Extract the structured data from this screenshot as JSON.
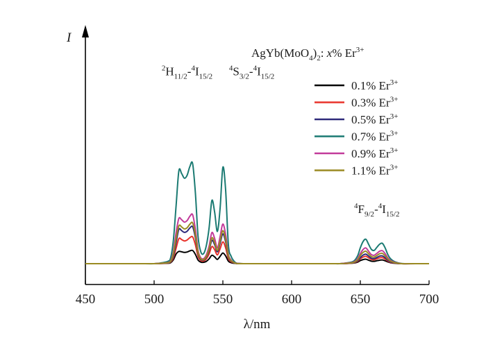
{
  "chart_data": {
    "type": "line",
    "title": "",
    "xlabel": "λ/nm",
    "ylabel": "I",
    "xlim": [
      450,
      700
    ],
    "xticks": [
      450,
      500,
      550,
      600,
      650,
      700
    ],
    "ylim": [
      0,
      1.15
    ],
    "yticks": [],
    "grid": false,
    "legend": {
      "title_main": "AgYb(MoO",
      "title_sub4": "4",
      "title_paren": ")",
      "title_sub2": "2",
      "title_colon": ": ",
      "title_var": "x",
      "title_rest": "% Er",
      "title_sup": "3+",
      "placement": "top-right"
    },
    "annotations": [
      {
        "x": 524,
        "y": 0.97,
        "parts": [
          {
            "t": "2",
            "k": "sup"
          },
          {
            "t": "H",
            "k": "n"
          },
          {
            "t": "11/2",
            "k": "sub"
          },
          {
            "t": "-",
            "k": "n"
          },
          {
            "t": "4",
            "k": "sup"
          },
          {
            "t": "I",
            "k": "n"
          },
          {
            "t": "15/2",
            "k": "sub"
          }
        ]
      },
      {
        "x": 571,
        "y": 0.97,
        "parts": [
          {
            "t": "4",
            "k": "sup"
          },
          {
            "t": "S",
            "k": "n"
          },
          {
            "t": "3/2",
            "k": "sub"
          },
          {
            "t": "-",
            "k": "n"
          },
          {
            "t": "4",
            "k": "sup"
          },
          {
            "t": "I",
            "k": "n"
          },
          {
            "t": "15/2",
            "k": "sub"
          }
        ]
      },
      {
        "x": 662,
        "y": 0.26,
        "parts": [
          {
            "t": "4",
            "k": "sup"
          },
          {
            "t": "F",
            "k": "n"
          },
          {
            "t": "9/2",
            "k": "sub"
          },
          {
            "t": "-",
            "k": "n"
          },
          {
            "t": "4",
            "k": "sup"
          },
          {
            "t": "I",
            "k": "n"
          },
          {
            "t": "15/2",
            "k": "sub"
          }
        ]
      }
    ],
    "x": [
      450,
      460,
      470,
      480,
      490,
      500,
      505,
      510,
      512,
      514,
      516,
      518,
      520,
      522,
      524,
      526,
      528,
      530,
      532,
      534,
      536,
      538,
      540,
      542,
      544,
      546,
      548,
      550,
      552,
      554,
      556,
      558,
      560,
      565,
      570,
      580,
      590,
      600,
      610,
      620,
      630,
      635,
      640,
      645,
      648,
      650,
      652,
      654,
      656,
      658,
      660,
      662,
      664,
      666,
      668,
      670,
      672,
      675,
      680,
      690,
      700
    ],
    "series": [
      {
        "name": "0.1% Er",
        "sup": "3+",
        "color": "#000000",
        "values": [
          0,
          0,
          0,
          0,
          0,
          0,
          0.001,
          0.002,
          0.005,
          0.02,
          0.05,
          0.063,
          0.061,
          0.058,
          0.06,
          0.066,
          0.068,
          0.048,
          0.018,
          0.008,
          0.007,
          0.012,
          0.025,
          0.043,
          0.035,
          0.022,
          0.038,
          0.055,
          0.04,
          0.013,
          0.005,
          0.002,
          0.001,
          0,
          0,
          0,
          0,
          0,
          0,
          0,
          0,
          0,
          0.001,
          0.003,
          0.008,
          0.016,
          0.021,
          0.023,
          0.018,
          0.013,
          0.012,
          0.015,
          0.018,
          0.019,
          0.015,
          0.009,
          0.005,
          0.002,
          0,
          0,
          0
        ]
      },
      {
        "name": "0.3% Er",
        "sup": "3+",
        "color": "#e8322a",
        "values": [
          0,
          0,
          0,
          0,
          0,
          0,
          0.001,
          0.003,
          0.008,
          0.03,
          0.08,
          0.129,
          0.124,
          0.117,
          0.122,
          0.134,
          0.138,
          0.098,
          0.037,
          0.016,
          0.014,
          0.025,
          0.05,
          0.088,
          0.072,
          0.045,
          0.077,
          0.112,
          0.082,
          0.026,
          0.01,
          0.004,
          0.001,
          0,
          0,
          0,
          0,
          0,
          0,
          0,
          0,
          0,
          0.001,
          0.004,
          0.012,
          0.025,
          0.034,
          0.038,
          0.03,
          0.022,
          0.02,
          0.025,
          0.03,
          0.031,
          0.024,
          0.014,
          0.007,
          0.003,
          0,
          0,
          0
        ]
      },
      {
        "name": "0.5% Er",
        "sup": "3+",
        "color": "#2e2a7a",
        "values": [
          0,
          0,
          0,
          0,
          0,
          0,
          0.002,
          0.004,
          0.01,
          0.04,
          0.11,
          0.177,
          0.17,
          0.161,
          0.167,
          0.184,
          0.19,
          0.134,
          0.051,
          0.022,
          0.019,
          0.034,
          0.068,
          0.12,
          0.098,
          0.061,
          0.105,
          0.153,
          0.112,
          0.036,
          0.014,
          0.005,
          0.001,
          0,
          0,
          0,
          0,
          0,
          0,
          0,
          0,
          0,
          0.002,
          0.005,
          0.015,
          0.031,
          0.044,
          0.049,
          0.039,
          0.028,
          0.026,
          0.032,
          0.039,
          0.04,
          0.031,
          0.018,
          0.009,
          0.004,
          0,
          0,
          0
        ]
      },
      {
        "name": "0.7% Er",
        "sup": "3+",
        "color": "#1a7a72",
        "values": [
          0,
          0,
          0,
          0,
          0,
          0,
          0.004,
          0.012,
          0.03,
          0.12,
          0.3,
          0.478,
          0.464,
          0.44,
          0.455,
          0.5,
          0.515,
          0.365,
          0.137,
          0.06,
          0.052,
          0.094,
          0.185,
          0.325,
          0.266,
          0.166,
          0.286,
          0.496,
          0.38,
          0.098,
          0.038,
          0.014,
          0.003,
          0,
          0,
          0,
          0,
          0,
          0,
          0,
          0,
          0,
          0.004,
          0.012,
          0.04,
          0.082,
          0.114,
          0.126,
          0.1,
          0.074,
          0.068,
          0.084,
          0.1,
          0.105,
          0.082,
          0.047,
          0.025,
          0.01,
          0.001,
          0,
          0
        ]
      },
      {
        "name": "0.9% Er",
        "sup": "3+",
        "color": "#c23a9a",
        "values": [
          0,
          0,
          0,
          0,
          0,
          0,
          0.002,
          0.006,
          0.015,
          0.06,
          0.16,
          0.233,
          0.226,
          0.214,
          0.222,
          0.244,
          0.252,
          0.178,
          0.067,
          0.029,
          0.026,
          0.046,
          0.091,
          0.16,
          0.13,
          0.081,
          0.14,
          0.204,
          0.15,
          0.048,
          0.019,
          0.007,
          0.002,
          0,
          0,
          0,
          0,
          0,
          0,
          0,
          0,
          0,
          0.003,
          0.008,
          0.025,
          0.052,
          0.073,
          0.081,
          0.064,
          0.047,
          0.043,
          0.053,
          0.064,
          0.067,
          0.052,
          0.03,
          0.016,
          0.007,
          0,
          0,
          0
        ]
      },
      {
        "name": "1.1% Er",
        "sup": "3+",
        "color": "#9a8a22",
        "values": [
          0,
          0,
          0,
          0,
          0,
          0,
          0.002,
          0.005,
          0.012,
          0.05,
          0.13,
          0.195,
          0.189,
          0.179,
          0.185,
          0.203,
          0.21,
          0.149,
          0.056,
          0.025,
          0.021,
          0.038,
          0.076,
          0.133,
          0.109,
          0.068,
          0.117,
          0.17,
          0.125,
          0.04,
          0.016,
          0.006,
          0.001,
          0,
          0,
          0,
          0,
          0,
          0,
          0,
          0,
          0,
          0.002,
          0.006,
          0.02,
          0.042,
          0.058,
          0.064,
          0.051,
          0.037,
          0.034,
          0.042,
          0.051,
          0.053,
          0.041,
          0.024,
          0.013,
          0.005,
          0,
          0,
          0
        ]
      }
    ]
  }
}
